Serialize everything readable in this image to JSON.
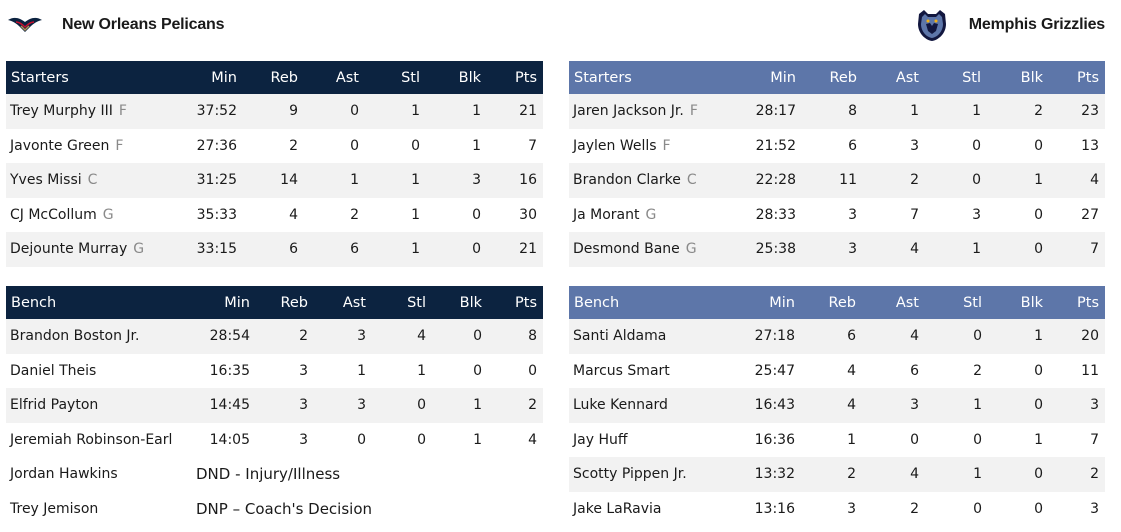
{
  "home": {
    "name": "New Orleans Pelicans",
    "logo_icon": "pelicans-logo-icon",
    "color": "#0c2340",
    "starters": {
      "headers": [
        "Starters",
        "Min",
        "Reb",
        "Ast",
        "Stl",
        "Blk",
        "Pts"
      ],
      "rows": [
        {
          "name": "Trey Murphy III",
          "pos": "F",
          "min": "37:52",
          "reb": "9",
          "ast": "0",
          "stl": "1",
          "blk": "1",
          "pts": "21"
        },
        {
          "name": "Javonte Green",
          "pos": "F",
          "min": "27:36",
          "reb": "2",
          "ast": "0",
          "stl": "0",
          "blk": "1",
          "pts": "7"
        },
        {
          "name": "Yves Missi",
          "pos": "C",
          "min": "31:25",
          "reb": "14",
          "ast": "1",
          "stl": "1",
          "blk": "3",
          "pts": "16"
        },
        {
          "name": "CJ McCollum",
          "pos": "G",
          "min": "35:33",
          "reb": "4",
          "ast": "2",
          "stl": "1",
          "blk": "0",
          "pts": "30"
        },
        {
          "name": "Dejounte Murray",
          "pos": "G",
          "min": "33:15",
          "reb": "6",
          "ast": "6",
          "stl": "1",
          "blk": "0",
          "pts": "21"
        }
      ]
    },
    "bench": {
      "headers": [
        "Bench",
        "Min",
        "Reb",
        "Ast",
        "Stl",
        "Blk",
        "Pts"
      ],
      "rows": [
        {
          "name": "Brandon Boston Jr.",
          "min": "28:54",
          "reb": "2",
          "ast": "3",
          "stl": "4",
          "blk": "0",
          "pts": "8"
        },
        {
          "name": "Daniel Theis",
          "min": "16:35",
          "reb": "3",
          "ast": "1",
          "stl": "1",
          "blk": "0",
          "pts": "0"
        },
        {
          "name": "Elfrid Payton",
          "min": "14:45",
          "reb": "3",
          "ast": "3",
          "stl": "0",
          "blk": "1",
          "pts": "2"
        },
        {
          "name": "Jeremiah Robinson-Earl",
          "min": "14:05",
          "reb": "3",
          "ast": "0",
          "stl": "0",
          "blk": "1",
          "pts": "4"
        }
      ],
      "dnp": [
        {
          "name": "Jordan Hawkins",
          "status": "DND - Injury/Illness"
        },
        {
          "name": "Trey Jemison",
          "status": "DNP – Coach's Decision"
        }
      ]
    }
  },
  "away": {
    "name": "Memphis Grizzlies",
    "logo_icon": "grizzlies-logo-icon",
    "color": "#5d76a9",
    "starters": {
      "headers": [
        "Starters",
        "Min",
        "Reb",
        "Ast",
        "Stl",
        "Blk",
        "Pts"
      ],
      "rows": [
        {
          "name": "Jaren Jackson Jr.",
          "pos": "F",
          "min": "28:17",
          "reb": "8",
          "ast": "1",
          "stl": "1",
          "blk": "2",
          "pts": "23"
        },
        {
          "name": "Jaylen Wells",
          "pos": "F",
          "min": "21:52",
          "reb": "6",
          "ast": "3",
          "stl": "0",
          "blk": "0",
          "pts": "13"
        },
        {
          "name": "Brandon Clarke",
          "pos": "C",
          "min": "22:28",
          "reb": "11",
          "ast": "2",
          "stl": "0",
          "blk": "1",
          "pts": "4"
        },
        {
          "name": "Ja Morant",
          "pos": "G",
          "min": "28:33",
          "reb": "3",
          "ast": "7",
          "stl": "3",
          "blk": "0",
          "pts": "27"
        },
        {
          "name": "Desmond Bane",
          "pos": "G",
          "min": "25:38",
          "reb": "3",
          "ast": "4",
          "stl": "1",
          "blk": "0",
          "pts": "7"
        }
      ]
    },
    "bench": {
      "headers": [
        "Bench",
        "Min",
        "Reb",
        "Ast",
        "Stl",
        "Blk",
        "Pts"
      ],
      "rows": [
        {
          "name": "Santi Aldama",
          "min": "27:18",
          "reb": "6",
          "ast": "4",
          "stl": "0",
          "blk": "1",
          "pts": "20"
        },
        {
          "name": "Marcus Smart",
          "min": "25:47",
          "reb": "4",
          "ast": "6",
          "stl": "2",
          "blk": "0",
          "pts": "11"
        },
        {
          "name": "Luke Kennard",
          "min": "16:43",
          "reb": "4",
          "ast": "3",
          "stl": "1",
          "blk": "0",
          "pts": "3"
        },
        {
          "name": "Jay Huff",
          "min": "16:36",
          "reb": "1",
          "ast": "0",
          "stl": "0",
          "blk": "1",
          "pts": "7"
        },
        {
          "name": "Scotty Pippen Jr.",
          "min": "13:32",
          "reb": "2",
          "ast": "4",
          "stl": "1",
          "blk": "0",
          "pts": "2"
        },
        {
          "name": "Jake LaRavia",
          "min": "13:16",
          "reb": "3",
          "ast": "2",
          "stl": "0",
          "blk": "0",
          "pts": "3"
        }
      ]
    }
  }
}
